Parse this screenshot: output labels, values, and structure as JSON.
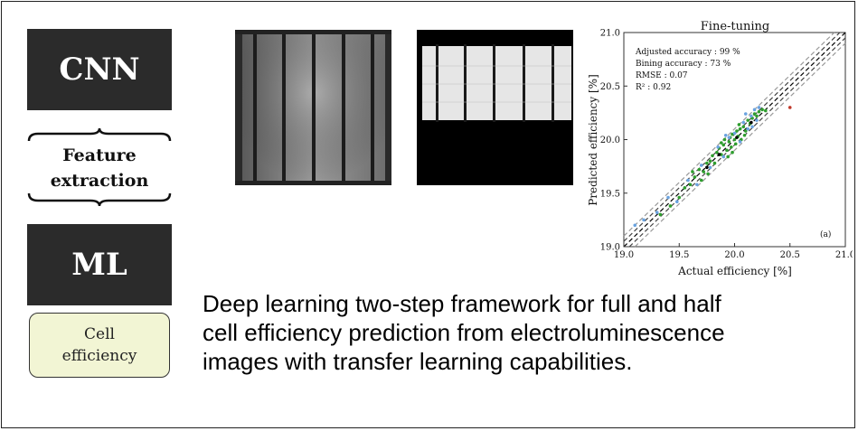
{
  "labels": {
    "cnn": "CNN",
    "feature_line1": "Feature",
    "feature_line2": "extraction",
    "ml": "ML",
    "cell_line1": "Cell",
    "cell_line2": "efficiency"
  },
  "caption": {
    "line1": "Deep learning two-step framework for full and half",
    "line2": "cell efficiency prediction from electroluminescence",
    "line3": "images with transfer learning capabilities."
  },
  "images": {
    "full_cell": "electroluminescence-full-cell-image",
    "half_cell": "electroluminescence-half-cell-image"
  },
  "chart_data": {
    "type": "scatter",
    "title": "Fine-tuning",
    "xlabel": "Actual efficiency [%]",
    "ylabel": "Predicted efficiency [%]",
    "xlim": [
      19.0,
      21.0
    ],
    "ylim": [
      19.0,
      21.0
    ],
    "xticks": [
      "19.0",
      "19.5",
      "20.0",
      "20.5",
      "21.0"
    ],
    "yticks": [
      "19.0",
      "19.5",
      "20.0",
      "20.5",
      "21.0"
    ],
    "annotations": [
      "Adjusted accuracy : 99 %",
      "Bining accuracy : 73 %",
      "RMSE : 0.07",
      "R² : 0.92"
    ],
    "panel_label": "(a)",
    "reference_lines": {
      "identity": {
        "style": "dashed",
        "color": "#000000"
      },
      "inner_band": {
        "offset": 0.05,
        "style": "dashed",
        "color": "#444444"
      },
      "outer_band": {
        "offset": 0.1,
        "style": "dashed",
        "color": "#999999"
      }
    },
    "series": [
      {
        "color": "#2e9e2e",
        "points": [
          [
            19.33,
            19.3
          ],
          [
            19.42,
            19.38
          ],
          [
            19.5,
            19.46
          ],
          [
            19.55,
            19.55
          ],
          [
            19.6,
            19.58
          ],
          [
            19.64,
            19.65
          ],
          [
            19.68,
            19.72
          ],
          [
            19.72,
            19.7
          ],
          [
            19.75,
            19.78
          ],
          [
            19.78,
            19.8
          ],
          [
            19.8,
            19.85
          ],
          [
            19.82,
            19.78
          ],
          [
            19.84,
            19.88
          ],
          [
            19.86,
            19.92
          ],
          [
            19.88,
            19.86
          ],
          [
            19.9,
            19.95
          ],
          [
            19.91,
            20.0
          ],
          [
            19.93,
            19.9
          ],
          [
            19.95,
            19.98
          ],
          [
            19.96,
            20.02
          ],
          [
            19.97,
            19.93
          ],
          [
            19.98,
            20.05
          ],
          [
            20.0,
            20.0
          ],
          [
            20.01,
            19.96
          ],
          [
            20.02,
            20.08
          ],
          [
            20.03,
            20.03
          ],
          [
            20.05,
            20.1
          ],
          [
            20.06,
            20.0
          ],
          [
            20.08,
            20.12
          ],
          [
            20.1,
            20.08
          ],
          [
            20.12,
            20.18
          ],
          [
            20.14,
            20.15
          ],
          [
            20.16,
            20.2
          ],
          [
            20.18,
            20.24
          ],
          [
            20.2,
            20.22
          ],
          [
            20.22,
            20.26
          ],
          [
            20.25,
            20.28
          ],
          [
            20.28,
            20.27
          ],
          [
            19.7,
            19.62
          ],
          [
            19.62,
            19.7
          ],
          [
            19.88,
            19.97
          ],
          [
            19.94,
            19.84
          ],
          [
            20.04,
            20.14
          ],
          [
            20.09,
            20.04
          ],
          [
            19.76,
            19.68
          ],
          [
            19.98,
            19.88
          ]
        ]
      },
      {
        "color": "#6aa3e0",
        "points": [
          [
            19.1,
            19.2
          ],
          [
            19.18,
            19.25
          ],
          [
            19.3,
            19.32
          ],
          [
            19.4,
            19.46
          ],
          [
            19.48,
            19.42
          ],
          [
            19.58,
            19.62
          ],
          [
            19.7,
            19.76
          ],
          [
            19.78,
            19.74
          ],
          [
            19.85,
            19.93
          ],
          [
            19.9,
            19.84
          ],
          [
            19.95,
            20.02
          ],
          [
            20.0,
            20.06
          ],
          [
            20.05,
            19.98
          ],
          [
            20.08,
            20.16
          ],
          [
            20.12,
            20.1
          ],
          [
            20.15,
            20.22
          ],
          [
            20.18,
            20.28
          ],
          [
            20.2,
            20.18
          ],
          [
            20.22,
            20.3
          ],
          [
            19.66,
            19.58
          ],
          [
            20.1,
            20.24
          ],
          [
            19.92,
            20.04
          ],
          [
            20.16,
            20.12
          ]
        ]
      },
      {
        "color": "#000000",
        "points": [
          [
            19.75,
            19.74
          ],
          [
            19.86,
            19.86
          ],
          [
            20.02,
            20.02
          ],
          [
            20.15,
            20.16
          ]
        ]
      },
      {
        "color": "#c0392b",
        "points": [
          [
            20.5,
            20.3
          ]
        ]
      }
    ]
  }
}
